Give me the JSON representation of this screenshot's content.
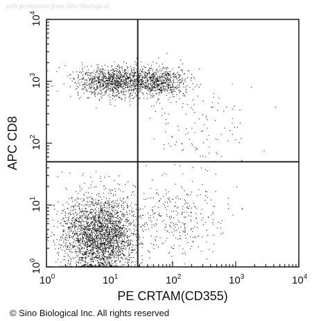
{
  "watermark": "with permission from Sino Biological",
  "copyright": "© Sino Biological Inc. All rights reserved",
  "chart_data": {
    "type": "scatter",
    "title": "",
    "xlabel": "PE CRTAM(CD355)",
    "ylabel": "APC CD8",
    "xscale": "log",
    "yscale": "log",
    "xlim": [
      1,
      10000
    ],
    "ylim": [
      1,
      10000
    ],
    "x_ticks": [
      {
        "base": "10",
        "exp": "0"
      },
      {
        "base": "10",
        "exp": "1"
      },
      {
        "base": "10",
        "exp": "2"
      },
      {
        "base": "10",
        "exp": "3"
      },
      {
        "base": "10",
        "exp": "4"
      }
    ],
    "y_ticks": [
      {
        "base": "10",
        "exp": "0"
      },
      {
        "base": "10",
        "exp": "1"
      },
      {
        "base": "10",
        "exp": "2"
      },
      {
        "base": "10",
        "exp": "3"
      },
      {
        "base": "10",
        "exp": "4"
      }
    ],
    "gates": {
      "x": 28,
      "y": 50
    },
    "grid": false,
    "legend": "none",
    "point_color": "#111111",
    "clusters": [
      {
        "name_hint": "CD8+ CRTAM-",
        "center": [
          12,
          1000
        ],
        "spread_decades": [
          0.3,
          0.12
        ],
        "count": 1100
      },
      {
        "name_hint": "CD8+ CRTAM+",
        "center": [
          60,
          1000
        ],
        "spread_decades": [
          0.22,
          0.12
        ],
        "count": 650
      },
      {
        "name_hint": "CD8- CRTAM-",
        "center": [
          7,
          3.2
        ],
        "spread_decades": [
          0.3,
          0.33
        ],
        "count": 2800
      },
      {
        "name_hint": "CD8- CRTAM+",
        "center": [
          120,
          6
        ],
        "spread_decades": [
          0.38,
          0.3
        ],
        "count": 300
      },
      {
        "name_hint": "sparse upper-right",
        "center": [
          250,
          200
        ],
        "spread_decades": [
          0.45,
          0.45
        ],
        "count": 140
      }
    ]
  }
}
